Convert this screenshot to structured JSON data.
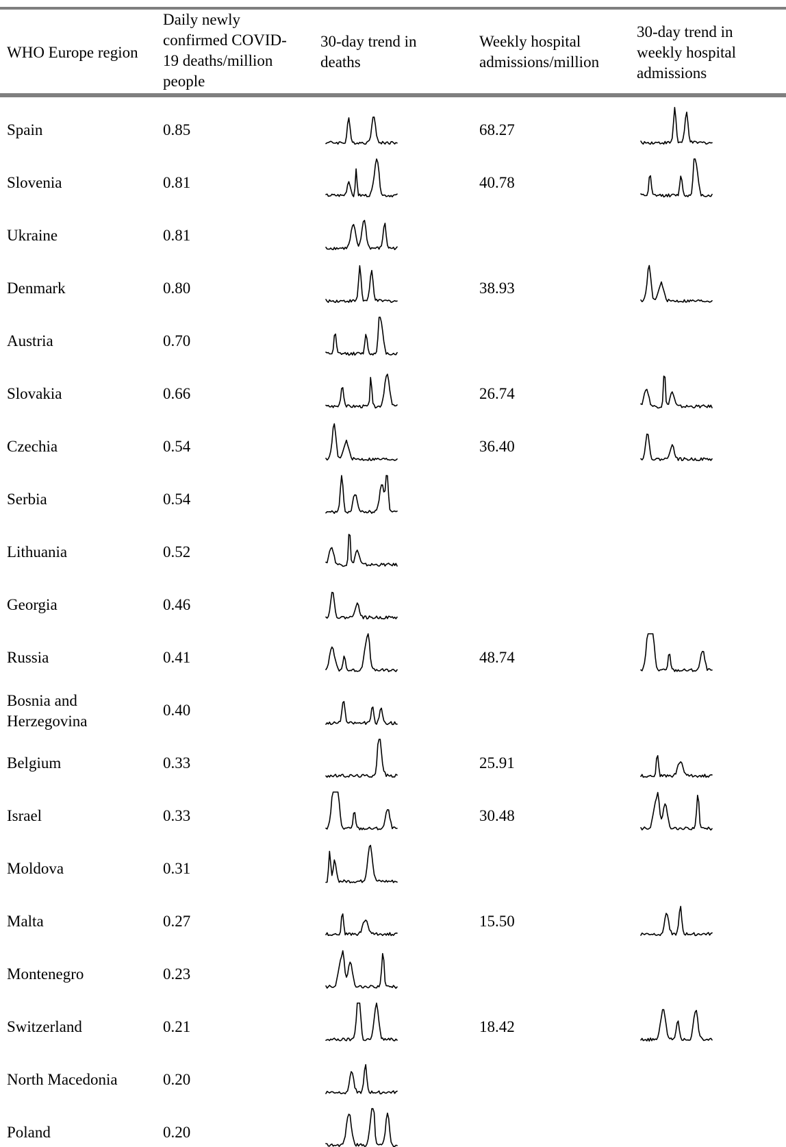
{
  "table": {
    "headers": {
      "region": "WHO Europe region",
      "deaths": [
        "Daily newly",
        "confirmed COVID-",
        "19 deaths/million",
        "people"
      ],
      "deaths_trend": [
        "30-day trend in",
        "deaths"
      ],
      "admissions": [
        "Weekly hospital",
        "admissions/million"
      ],
      "admissions_trend": [
        "30-day trend in",
        "weekly hospital",
        "admissions"
      ]
    },
    "rows": [
      {
        "region": "Spain",
        "deaths": "0.85",
        "admissions": "68.27",
        "has_adm_trend": true
      },
      {
        "region": "Slovenia",
        "deaths": "0.81",
        "admissions": "40.78",
        "has_adm_trend": true
      },
      {
        "region": "Ukraine",
        "deaths": "0.81",
        "admissions": "",
        "has_adm_trend": false
      },
      {
        "region": "Denmark",
        "deaths": "0.80",
        "admissions": "38.93",
        "has_adm_trend": true
      },
      {
        "region": "Austria",
        "deaths": "0.70",
        "admissions": "",
        "has_adm_trend": false
      },
      {
        "region": "Slovakia",
        "deaths": "0.66",
        "admissions": "26.74",
        "has_adm_trend": true
      },
      {
        "region": "Czechia",
        "deaths": "0.54",
        "admissions": "36.40",
        "has_adm_trend": true
      },
      {
        "region": "Serbia",
        "deaths": "0.54",
        "admissions": "",
        "has_adm_trend": false
      },
      {
        "region": "Lithuania",
        "deaths": "0.52",
        "admissions": "",
        "has_adm_trend": false
      },
      {
        "region": "Georgia",
        "deaths": "0.46",
        "admissions": "",
        "has_adm_trend": false
      },
      {
        "region": "Russia",
        "deaths": "0.41",
        "admissions": "48.74",
        "has_adm_trend": true
      },
      {
        "region": "Bosnia and Herzegovina",
        "deaths": "0.40",
        "admissions": "",
        "has_adm_trend": false
      },
      {
        "region": "Belgium",
        "deaths": "0.33",
        "admissions": "25.91",
        "has_adm_trend": true
      },
      {
        "region": "Israel",
        "deaths": "0.33",
        "admissions": "30.48",
        "has_adm_trend": true
      },
      {
        "region": "Moldova",
        "deaths": "0.31",
        "admissions": "",
        "has_adm_trend": false
      },
      {
        "region": "Malta",
        "deaths": "0.27",
        "admissions": "15.50",
        "has_adm_trend": true
      },
      {
        "region": "Montenegro",
        "deaths": "0.23",
        "admissions": "",
        "has_adm_trend": false
      },
      {
        "region": "Switzerland",
        "deaths": "0.21",
        "admissions": "18.42",
        "has_adm_trend": true
      },
      {
        "region": "North Macedonia",
        "deaths": "0.20",
        "admissions": "",
        "has_adm_trend": false
      },
      {
        "region": "Poland",
        "deaths": "0.20",
        "admissions": "",
        "has_adm_trend": false
      }
    ]
  }
}
